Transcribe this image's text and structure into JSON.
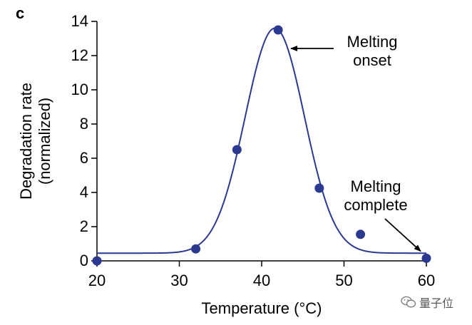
{
  "panel_label": "c",
  "watermark": "量子位",
  "colors": {
    "curve": "#2B3990",
    "points": "#2B3990",
    "axis": "#000000",
    "text": "#000000"
  },
  "chart_data": {
    "type": "line",
    "title": "",
    "xlabel": "Temperature (°C)",
    "ylabel_lines": [
      "Degradation rate",
      "(normalized)"
    ],
    "xlim": [
      20,
      60
    ],
    "ylim": [
      0,
      14
    ],
    "xticks": [
      20,
      30,
      40,
      50,
      60
    ],
    "yticks": [
      0,
      2,
      4,
      6,
      8,
      10,
      12,
      14
    ],
    "grid": false,
    "legend": "none",
    "points": [
      {
        "x": 20,
        "y": 0.0
      },
      {
        "x": 32,
        "y": 0.7
      },
      {
        "x": 37,
        "y": 6.5
      },
      {
        "x": 42,
        "y": 13.5
      },
      {
        "x": 47,
        "y": 4.25
      },
      {
        "x": 52,
        "y": 1.55
      },
      {
        "x": 60,
        "y": 0.15
      }
    ],
    "fit_curve": {
      "type": "gaussian",
      "baseline": 0.45,
      "amplitude": 13.15,
      "center": 41.6,
      "sigma": 3.6
    },
    "annotations": [
      {
        "lines": [
          "Melting",
          "onset"
        ],
        "target": {
          "x": 42,
          "y": 13.5
        }
      },
      {
        "lines": [
          "Melting",
          "complete"
        ],
        "target": {
          "x": 60,
          "y": 0.15
        }
      }
    ]
  }
}
